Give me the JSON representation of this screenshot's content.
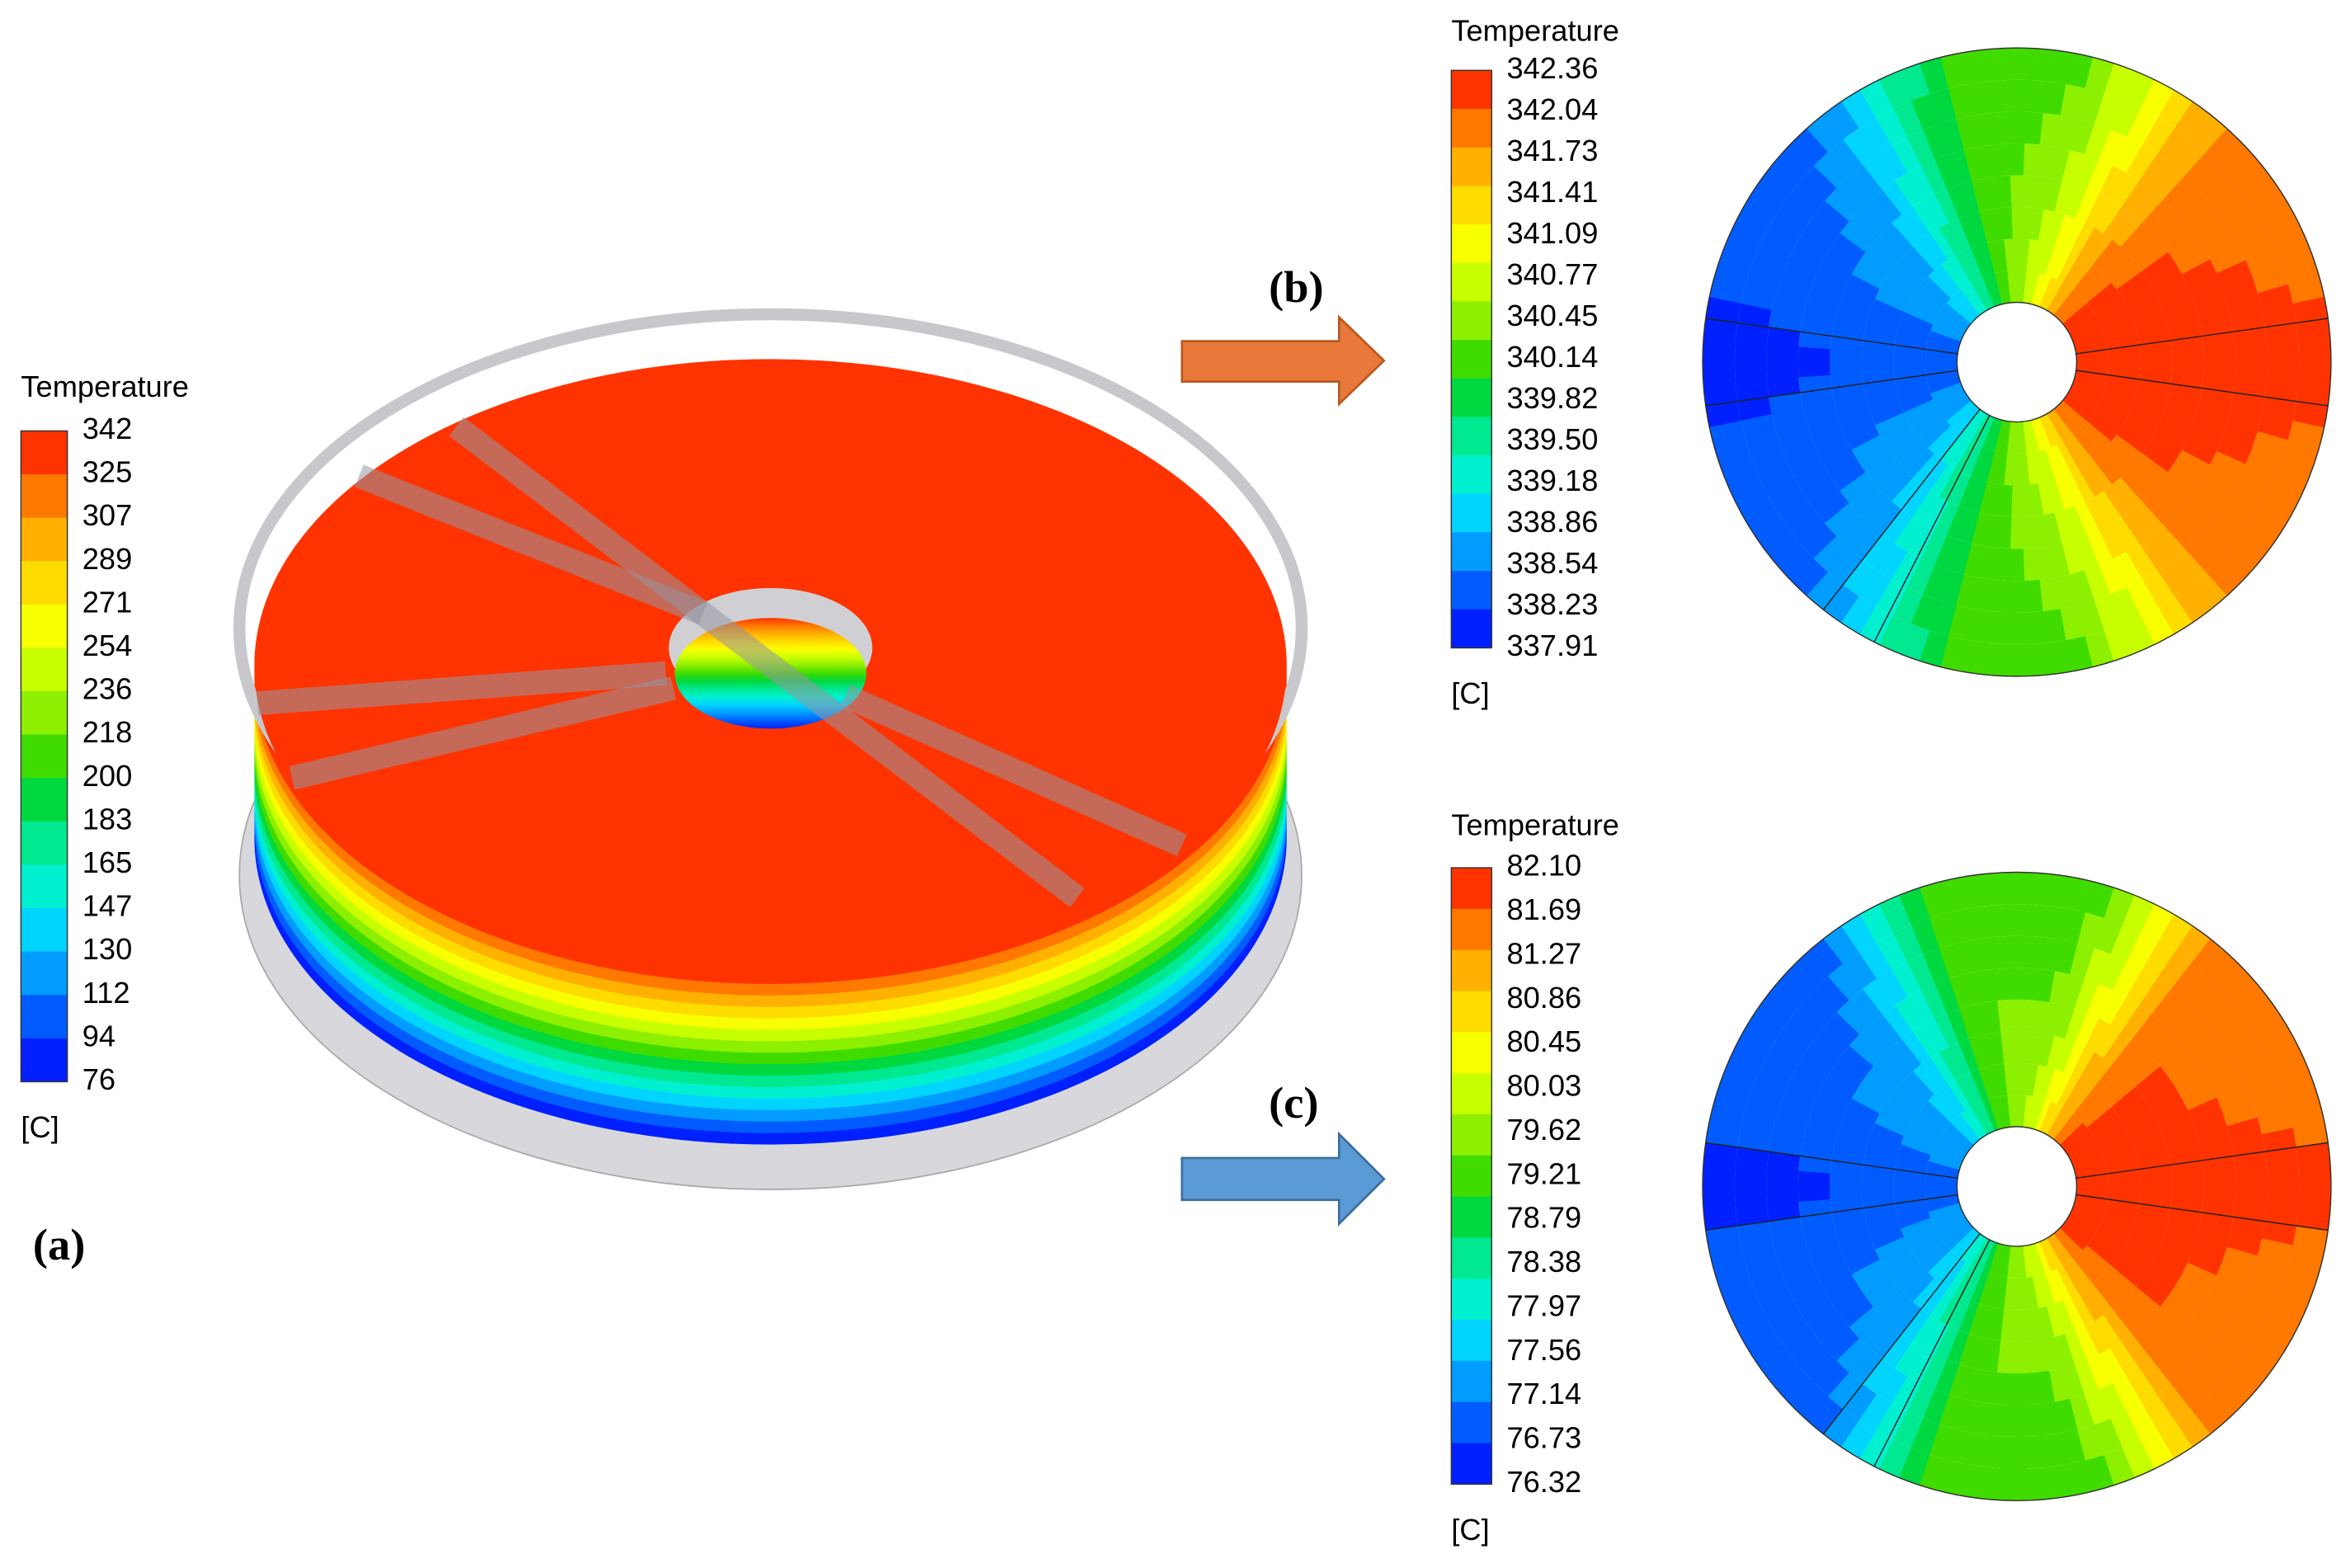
{
  "legends": [
    {
      "title": "Temperature",
      "labels": [
        "342",
        "325",
        "307",
        "289",
        "271",
        "254",
        "236",
        "218",
        "200",
        "183",
        "165",
        "147",
        "130",
        "112",
        "94",
        "76"
      ],
      "unit": "[C]"
    },
    {
      "title": "Temperature",
      "labels": [
        "342.36",
        "342.04",
        "341.73",
        "341.41",
        "341.09",
        "340.77",
        "340.45",
        "340.14",
        "339.82",
        "339.50",
        "339.18",
        "338.86",
        "338.54",
        "338.23",
        "337.91"
      ],
      "unit": "[C]"
    },
    {
      "title": "Temperature",
      "labels": [
        "82.10",
        "81.69",
        "81.27",
        "80.86",
        "80.45",
        "80.03",
        "79.62",
        "79.21",
        "78.79",
        "78.38",
        "77.97",
        "77.56",
        "77.14",
        "76.73",
        "76.32"
      ],
      "unit": "[C]"
    }
  ],
  "panels": [
    "(a)",
    "(b)",
    "(c)"
  ],
  "palette": [
    "#ff3300",
    "#ff7800",
    "#ffb000",
    "#ffdc00",
    "#f8ff00",
    "#c8ff00",
    "#8cf000",
    "#40dc00",
    "#00d840",
    "#00e890",
    "#00f0d0",
    "#00d4ff",
    "#009cff",
    "#005cff",
    "#0020ff"
  ]
}
